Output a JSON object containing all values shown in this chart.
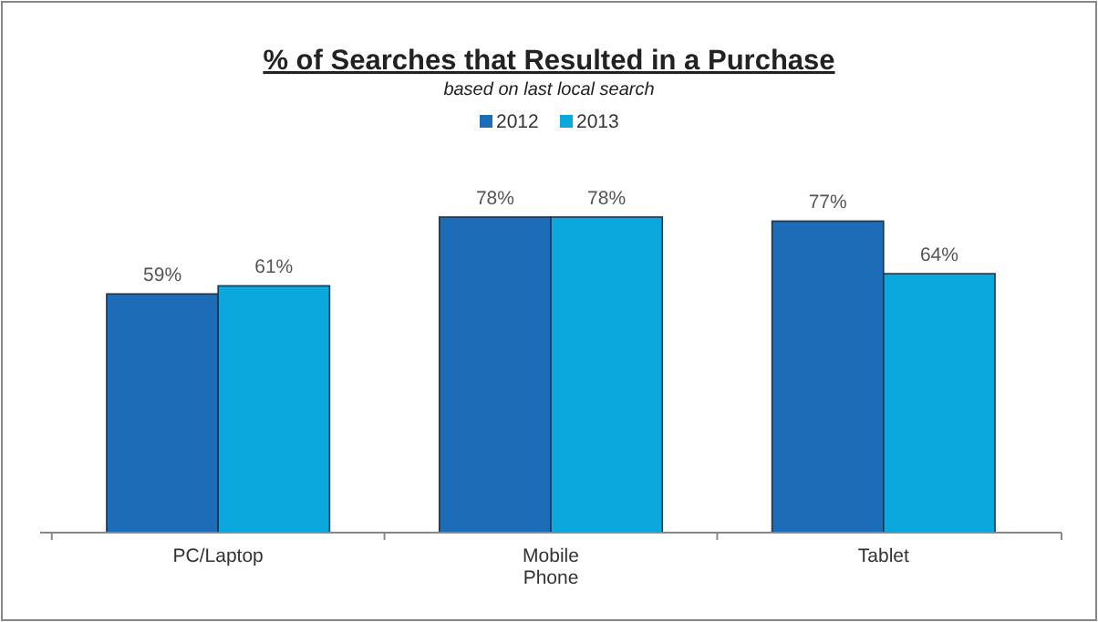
{
  "chart_data": {
    "type": "bar",
    "title": "% of Searches that Resulted in a Purchase",
    "subtitle": "based on last local search",
    "categories": [
      "PC/Laptop",
      "Mobile Phone",
      "Tablet"
    ],
    "series": [
      {
        "name": "2012",
        "color": "#1c6cb7",
        "values": [
          59,
          78,
          77
        ],
        "value_labels": [
          "59%",
          "78%",
          "77%"
        ]
      },
      {
        "name": "2013",
        "color": "#0ba8de",
        "values": [
          61,
          78,
          64
        ],
        "value_labels": [
          "61%",
          "78%",
          "64%"
        ]
      }
    ],
    "tick_labels": "x",
    "legend": "top",
    "grid": false
  }
}
